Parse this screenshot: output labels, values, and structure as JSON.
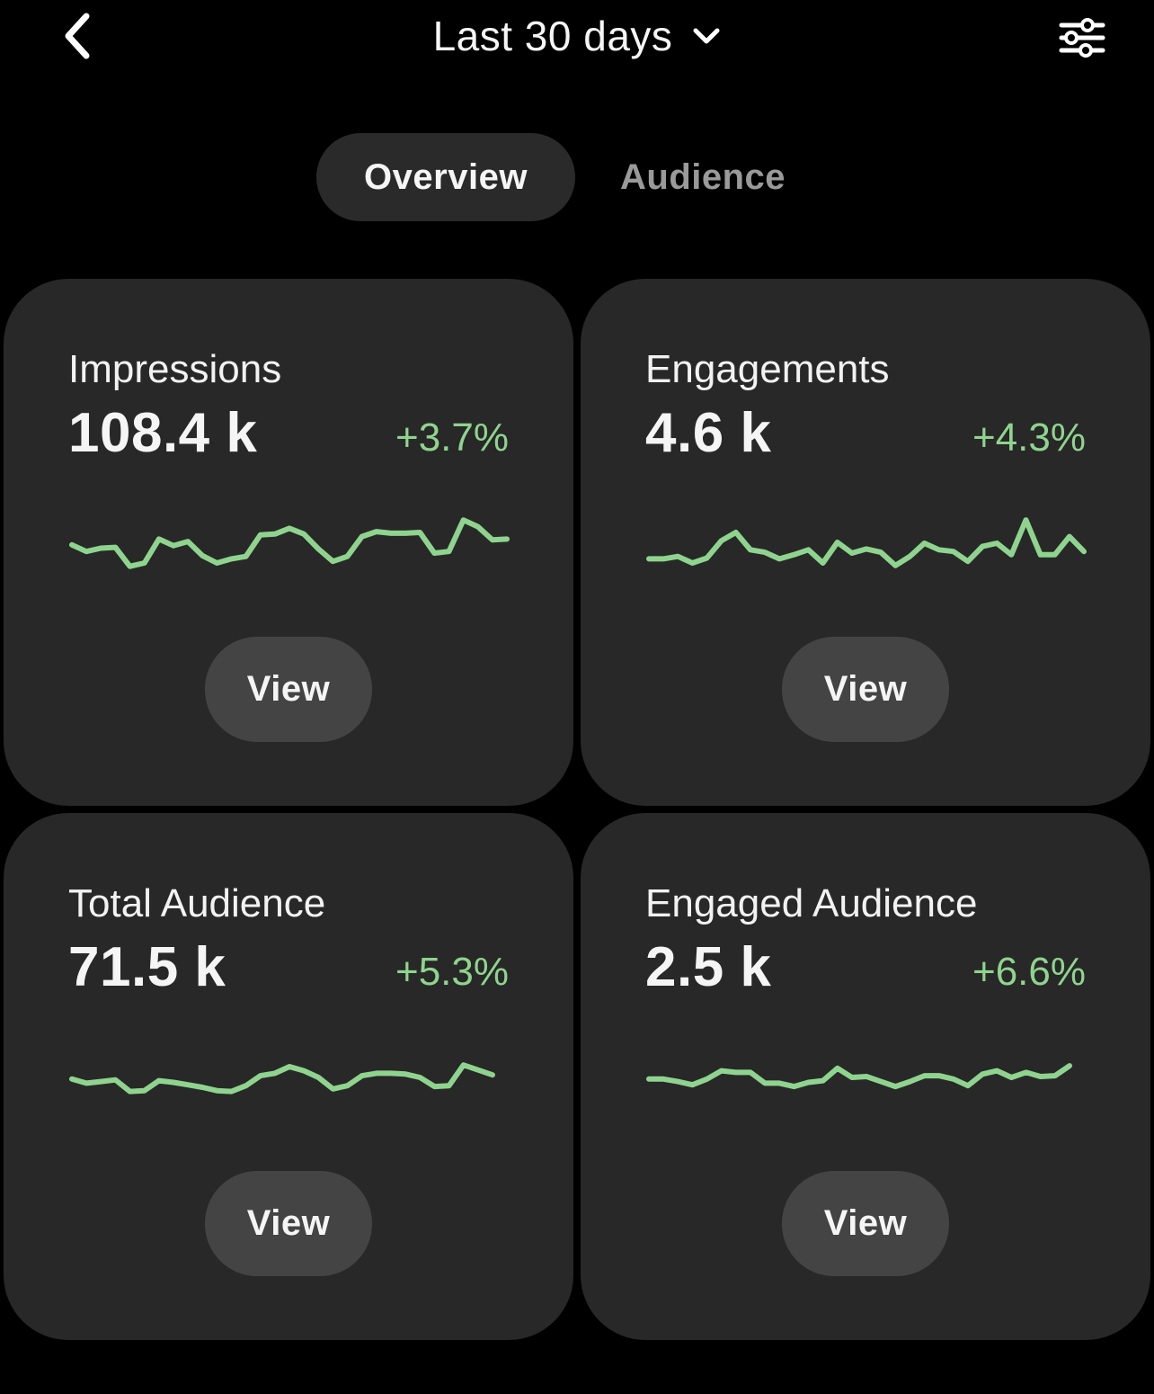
{
  "header": {
    "range_label": "Last 30 days",
    "icons": {
      "back": "chevron-left-icon",
      "range": "chevron-down-icon",
      "filter": "sliders-icon"
    }
  },
  "tabs": [
    {
      "label": "Overview",
      "active": true
    },
    {
      "label": "Audience",
      "active": false
    }
  ],
  "colors": {
    "background": "#000000",
    "card": "#282828",
    "button": "#444444",
    "positive": "#8fd48e",
    "tab_inactive": "#9a9a9a"
  },
  "cards": [
    {
      "title": "Impressions",
      "value": "108.4 k",
      "change": "+3.7%",
      "button_label": "View",
      "trend": [
        60,
        52,
        56,
        57,
        34,
        38,
        67,
        59,
        64,
        47,
        38,
        43,
        46,
        72,
        73,
        80,
        73,
        55,
        40,
        46,
        70,
        76,
        74,
        74,
        75,
        50,
        52,
        90,
        82,
        66,
        67
      ]
    },
    {
      "title": "Engagements",
      "value": "4.6 k",
      "change": "+4.3%",
      "button_label": "View",
      "trend": [
        43,
        43,
        46,
        38,
        44,
        65,
        75,
        54,
        51,
        43,
        48,
        54,
        38,
        63,
        50,
        55,
        51,
        35,
        46,
        62,
        54,
        52,
        40,
        58,
        62,
        48,
        90,
        48,
        48,
        70,
        52
      ]
    },
    {
      "title": "Total Audience",
      "value": "71.5 k",
      "change": "+5.3%",
      "button_label": "View",
      "trend": [
        60,
        55,
        57,
        59,
        45,
        46,
        58,
        56,
        53,
        50,
        46,
        45,
        52,
        64,
        67,
        75,
        70,
        62,
        48,
        52,
        64,
        67,
        67,
        66,
        62,
        51,
        52,
        77,
        71,
        65
      ]
    },
    {
      "title": "Engaged Audience",
      "value": "2.5 k",
      "change": "+6.6%",
      "button_label": "View",
      "trend": [
        60,
        60,
        57,
        53,
        60,
        70,
        68,
        68,
        55,
        55,
        51,
        56,
        58,
        73,
        62,
        63,
        57,
        51,
        57,
        64,
        64,
        60,
        52,
        66,
        70,
        62,
        68,
        63,
        64,
        76
      ]
    }
  ]
}
